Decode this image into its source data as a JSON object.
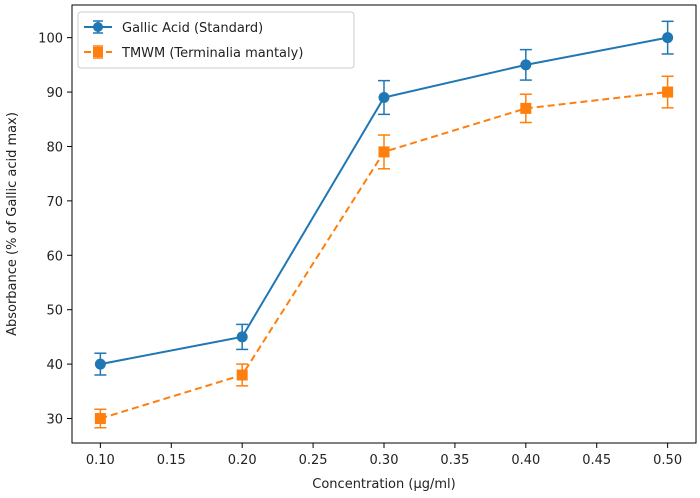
{
  "chart_data": {
    "type": "line",
    "title": "",
    "xlabel": "Concentration (µg/ml)",
    "ylabel": "Absorbance (% of Gallic acid max)",
    "xlim": [
      0.08,
      0.52
    ],
    "ylim": [
      25.5,
      106
    ],
    "x_ticks": [
      "0.10",
      "0.15",
      "0.20",
      "0.25",
      "0.30",
      "0.35",
      "0.40",
      "0.45",
      "0.50"
    ],
    "y_ticks": [
      "30",
      "40",
      "50",
      "60",
      "70",
      "80",
      "90",
      "100"
    ],
    "grid": false,
    "legend_position": "top-left",
    "x": [
      0.1,
      0.2,
      0.3,
      0.4,
      0.5
    ],
    "series": [
      {
        "name": "Gallic Acid (Standard)",
        "values": [
          40,
          45,
          89,
          95,
          100
        ],
        "errors": [
          2.0,
          2.3,
          3.1,
          2.8,
          3.0
        ],
        "color": "#1f77b4",
        "marker": "circle",
        "line_style": "solid"
      },
      {
        "name": "TMWM (Terminalia mantaly)",
        "values": [
          30,
          38,
          79,
          87,
          90
        ],
        "errors": [
          1.7,
          2.0,
          3.1,
          2.6,
          2.9
        ],
        "color": "#ff7f0e",
        "marker": "square",
        "line_style": "dashed"
      }
    ]
  }
}
